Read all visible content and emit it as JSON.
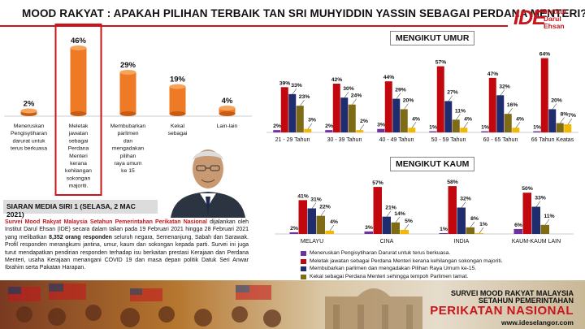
{
  "title": "MOOD RAKYAT : APAKAH PILIHAN TERBAIK TAN SRI MUHYIDDIN YASSIN SEBAGAI PERDANA MENTERI?",
  "logo": {
    "mark": "IDE",
    "name": "Institut Darul Ehsan"
  },
  "colors": {
    "purple": "#7030a0",
    "red": "#c0080e",
    "navy": "#1f2d6e",
    "olive": "#7f6a16",
    "yellow": "#f5b800",
    "orange": "#ee7a26",
    "highlight": "#c9141c"
  },
  "headings": {
    "umur": "MENGIKUT UMUR",
    "kaum": "MENGIKUT KAUM"
  },
  "chart_data": [
    {
      "type": "bar",
      "id": "overall",
      "categories": [
        "Meneruskan Pengisytiharan darurat untuk terus berkuasa",
        "Meletak jawatan sebagai Perdana Menteri kerana kehilangan sokongan majoriti.",
        "Membubarkan parlimen dan mengadakan pilihan raya umum ke 15",
        "Kekal sebagai Perdana Menteri Malaysia sehingga tempoh Parlimen tamat",
        "Lain-lain"
      ],
      "values": [
        2,
        46,
        29,
        19,
        4
      ],
      "value_labels": [
        "2%",
        "46%",
        "29%",
        "19%",
        "4%"
      ],
      "highlighted_index": 1,
      "ylim": [
        0,
        50
      ]
    },
    {
      "type": "bar",
      "id": "umur",
      "categories": [
        "21 - 29 Tahun",
        "30 - 39 Tahun",
        "40 - 49 Tahun",
        "50 - 59 Tahun",
        "60 - 65 Tahun",
        "66 Tahun Keatas"
      ],
      "series": [
        {
          "color": "#7030a0",
          "values": [
            2,
            2,
            3,
            1,
            1,
            1
          ],
          "labels": [
            "2%",
            "2%",
            "3%",
            "1%",
            "1%",
            "1%"
          ]
        },
        {
          "color": "#c0080e",
          "values": [
            39,
            42,
            44,
            57,
            47,
            64
          ],
          "labels": [
            "39%",
            "42%",
            "44%",
            "57%",
            "47%",
            "64%"
          ]
        },
        {
          "color": "#1f2d6e",
          "values": [
            33,
            30,
            29,
            27,
            32,
            20
          ],
          "labels": [
            "33%",
            "30%",
            "29%",
            "27%",
            "32%",
            "20%"
          ]
        },
        {
          "color": "#7f6a16",
          "values": [
            23,
            24,
            20,
            11,
            16,
            8
          ],
          "labels": [
            "23%",
            "24%",
            "20%",
            "11%",
            "16%",
            "8%"
          ]
        },
        {
          "color": "#f5b800",
          "values": [
            3,
            2,
            4,
            4,
            4,
            7
          ],
          "labels": [
            "3%",
            "2%",
            "4%",
            "4%",
            "4%",
            "7%"
          ]
        }
      ],
      "ylim": [
        0,
        70
      ]
    },
    {
      "type": "bar",
      "id": "kaum",
      "categories": [
        "MELAYU",
        "CINA",
        "INDIA",
        "KAUM-KAUM LAIN"
      ],
      "series": [
        {
          "color": "#7030a0",
          "values": [
            2,
            3,
            1,
            6
          ],
          "labels": [
            "2%",
            "3%",
            "1%",
            "6%"
          ]
        },
        {
          "color": "#c0080e",
          "values": [
            41,
            57,
            58,
            50
          ],
          "labels": [
            "41%",
            "57%",
            "58%",
            "50%"
          ]
        },
        {
          "color": "#1f2d6e",
          "values": [
            31,
            21,
            32,
            33
          ],
          "labels": [
            "31%",
            "21%",
            "32%",
            "33%"
          ]
        },
        {
          "color": "#7f6a16",
          "values": [
            22,
            14,
            8,
            11
          ],
          "labels": [
            "22%",
            "14%",
            "8%",
            "11%"
          ]
        },
        {
          "color": "#f5b800",
          "values": [
            4,
            5,
            1,
            null
          ],
          "labels": [
            "4%",
            "5%",
            "1%",
            ""
          ]
        }
      ],
      "ylim": [
        0,
        65
      ]
    }
  ],
  "legend": [
    {
      "label": "Meneruskan Pengisytiharan Darurat untuk terus berkuasa.",
      "color": "#7030a0"
    },
    {
      "label": "Meletak jawatan sebagai Perdana Menteri kerana kehilangan sokongan majoriti.",
      "color": "#c0080e"
    },
    {
      "label": "Membubarkan parlimen dan mengadakan Pilihan Raya Umum ke-15.",
      "color": "#1f2d6e"
    },
    {
      "label": "Kekal sebagai Perdana Menteri sehingga tempoh Parlimen tamat.",
      "color": "#7f6a16"
    },
    {
      "label": "Lain-lain",
      "color": "#f5b800"
    }
  ],
  "media": {
    "heading": "SIARAN MEDIA SIRI 1 (SELASA, 2 MAC 2021)",
    "lead": "Survei Mood Rakyat Malaysia Setahun Pemerintahan Perikatan Nasional",
    "body_1": " dijalankan oleh Institut Darul Ehsan (IDE) secara dalam talian pada 19 Februari 2021 hingga 28 Februari 2021 yang melibatkan ",
    "respondents": "8,352 orang responden",
    "body_2": " seluruh negara, Semenanjung, Sabah dan Sarawak. Profil responden merangkumi jantina, umur, kaum dan sokongan kepada parti. Survei ini juga turut mendapatkan pendirian responden terhadap isu berkaitan prestasi Kerajaan dan Perdana Menteri, usaha Kerajaan menangani COVID 19 dan masa depan politik Datuk Seri Anwar Ibrahim serta Pakatan Harapan."
  },
  "banner": {
    "line1": "SURVEI MOOD RAKYAT MALAYSIA",
    "line2": "SETAHUN PEMERINTAHAN",
    "line3": "PERIKATAN NASIONAL",
    "url": "www.ideselangor.com"
  }
}
